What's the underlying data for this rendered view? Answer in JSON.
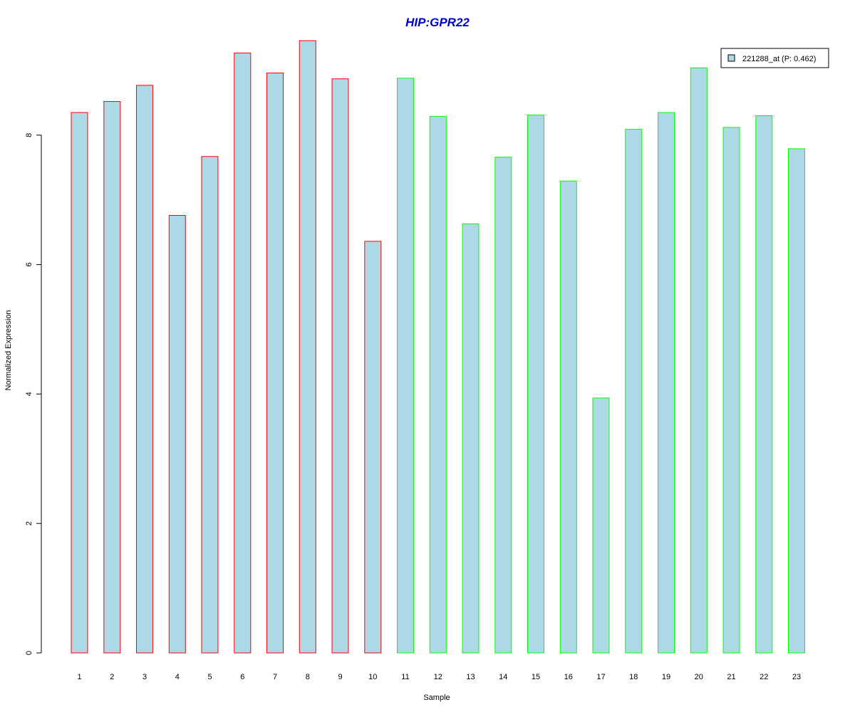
{
  "chart_data": {
    "type": "bar",
    "title": "HIP:GPR22",
    "xlabel": "Sample",
    "ylabel": "Normalized Expression",
    "categories": [
      "1",
      "2",
      "3",
      "4",
      "5",
      "6",
      "7",
      "8",
      "9",
      "10",
      "11",
      "12",
      "13",
      "14",
      "15",
      "16",
      "17",
      "18",
      "19",
      "20",
      "21",
      "22",
      "23"
    ],
    "series": [
      {
        "name": "221288_at (P: 0.462)",
        "values": [
          8.35,
          8.52,
          8.77,
          6.76,
          7.67,
          9.27,
          8.96,
          9.46,
          8.87,
          6.36,
          8.88,
          8.29,
          6.63,
          7.66,
          8.31,
          7.29,
          3.94,
          8.09,
          8.35,
          9.04,
          8.12,
          8.3,
          7.79
        ]
      }
    ],
    "groups": [
      1,
      1,
      1,
      1,
      1,
      1,
      1,
      1,
      1,
      1,
      2,
      2,
      2,
      2,
      2,
      2,
      2,
      2,
      2,
      2,
      2,
      2,
      2
    ],
    "yticks": [
      0,
      2,
      4,
      6,
      8
    ],
    "ylim": [
      0,
      9.46
    ],
    "legend_position": "top-right",
    "grid": false,
    "colors": {
      "bar_fill": "#ADD8E6",
      "group1_border": "#FF0000",
      "group2_border": "#00FF00",
      "title": "#0000CC",
      "axis": "#000000"
    }
  }
}
